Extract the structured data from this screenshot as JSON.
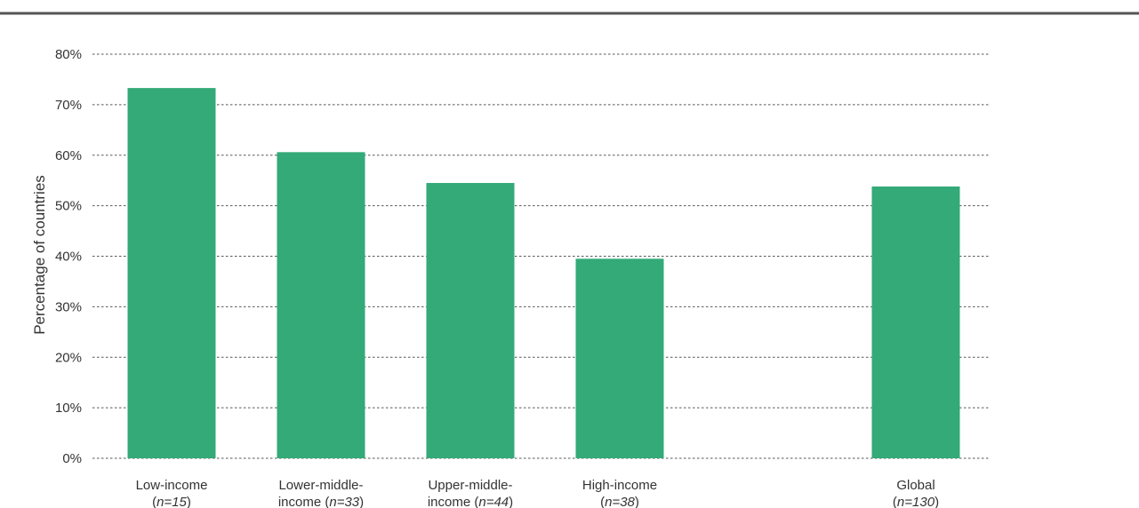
{
  "chart_data": {
    "type": "bar",
    "ylabel": "Percentage of countries",
    "xlabel": "",
    "ylim": [
      0,
      80
    ],
    "yticks": [
      0,
      10,
      20,
      30,
      40,
      50,
      60,
      70,
      80
    ],
    "ytick_suffix": "%",
    "grid": true,
    "bar_color": "#33aa78",
    "categories": [
      {
        "label": "Low-income",
        "n_prefix": "(",
        "n_text": "n=15",
        "n_suffix": ")",
        "value": 73.3
      },
      {
        "label": "Lower-middle-",
        "label2": "income ",
        "n_prefix": "(",
        "n_text": "n=33",
        "n_suffix": ")",
        "value": 60.6
      },
      {
        "label": "Upper-middle-",
        "label2": "income ",
        "n_prefix": "(",
        "n_text": "n=44",
        "n_suffix": ")",
        "value": 54.5
      },
      {
        "label": "High-income",
        "n_prefix": "(",
        "n_text": "n=38",
        "n_suffix": ")",
        "value": 39.5
      },
      {
        "label": "Global",
        "n_prefix": "(",
        "n_text": "n=130",
        "n_suffix": ")",
        "value": 53.8
      }
    ]
  }
}
